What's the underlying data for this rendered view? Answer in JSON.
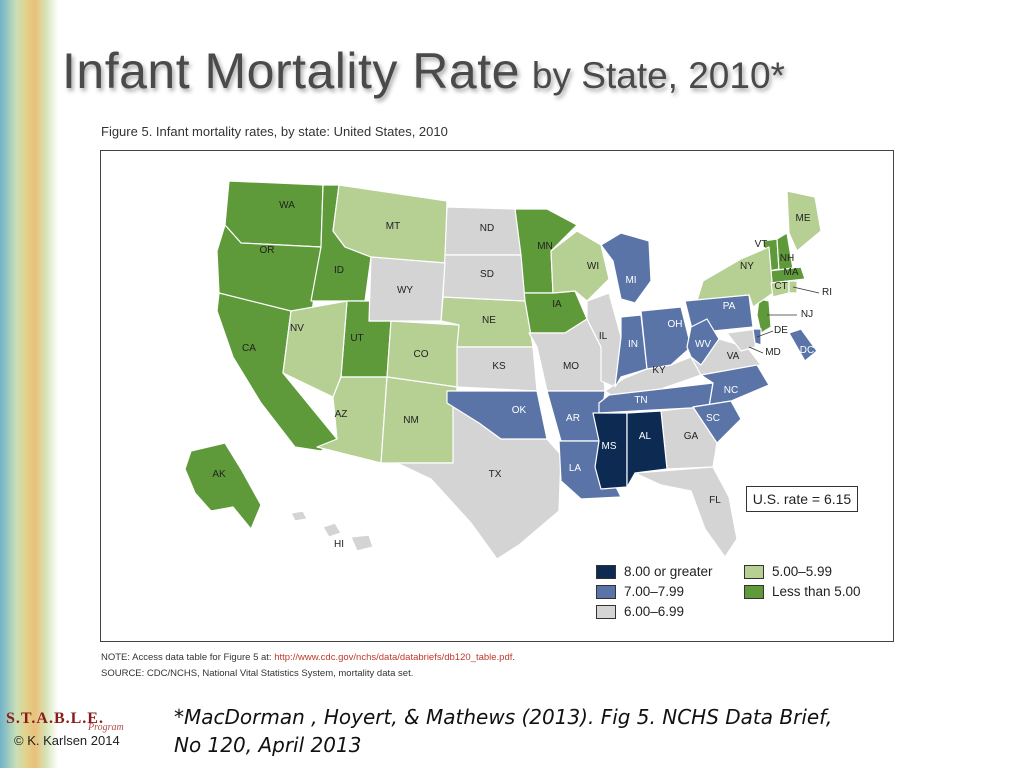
{
  "slide": {
    "title_main": "Infant Mortality Rate",
    "title_sub": "by State, 2010*"
  },
  "figure": {
    "caption": "Figure 5. Infant mortality rates, by state: United States, 2010",
    "us_rate": "U.S. rate = 6.15"
  },
  "legend": [
    {
      "label": "8.00 or greater",
      "color": "#0d2a52"
    },
    {
      "label": "7.00–7.99",
      "color": "#5b74a8"
    },
    {
      "label": "6.00–6.99",
      "color": "#d4d4d4"
    },
    {
      "label": "5.00–5.99",
      "color": "#b6cf93"
    },
    {
      "label": "Less than 5.00",
      "color": "#5e9a3a"
    }
  ],
  "map_data": {
    "type": "choropleth",
    "categories": [
      "8.00 or greater",
      "7.00–7.99",
      "6.00–6.99",
      "5.00–5.99",
      "Less than 5.00"
    ],
    "states": [
      {
        "code": "WA",
        "category": 4
      },
      {
        "code": "OR",
        "category": 4
      },
      {
        "code": "CA",
        "category": 4
      },
      {
        "code": "ID",
        "category": 4
      },
      {
        "code": "UT",
        "category": 4
      },
      {
        "code": "MN",
        "category": 4
      },
      {
        "code": "IA",
        "category": 4
      },
      {
        "code": "VT",
        "category": 4
      },
      {
        "code": "NH",
        "category": 4
      },
      {
        "code": "MA",
        "category": 4
      },
      {
        "code": "NJ",
        "category": 4
      },
      {
        "code": "AK",
        "category": 4
      },
      {
        "code": "MT",
        "category": 3
      },
      {
        "code": "NV",
        "category": 3
      },
      {
        "code": "CO",
        "category": 3
      },
      {
        "code": "AZ",
        "category": 3
      },
      {
        "code": "NM",
        "category": 3
      },
      {
        "code": "NE",
        "category": 3
      },
      {
        "code": "WI",
        "category": 3
      },
      {
        "code": "NY",
        "category": 3
      },
      {
        "code": "ME",
        "category": 3
      },
      {
        "code": "CT",
        "category": 3
      },
      {
        "code": "RI",
        "category": 3
      },
      {
        "code": "ND",
        "category": 2
      },
      {
        "code": "SD",
        "category": 2
      },
      {
        "code": "WY",
        "category": 2
      },
      {
        "code": "KS",
        "category": 2
      },
      {
        "code": "TX",
        "category": 2
      },
      {
        "code": "MO",
        "category": 2
      },
      {
        "code": "IL",
        "category": 2
      },
      {
        "code": "KY",
        "category": 2
      },
      {
        "code": "VA",
        "category": 2
      },
      {
        "code": "GA",
        "category": 2
      },
      {
        "code": "FL",
        "category": 2
      },
      {
        "code": "HI",
        "category": 2
      },
      {
        "code": "MD",
        "category": 2
      },
      {
        "code": "OK",
        "category": 1
      },
      {
        "code": "AR",
        "category": 1
      },
      {
        "code": "LA",
        "category": 1
      },
      {
        "code": "MI",
        "category": 1
      },
      {
        "code": "IN",
        "category": 1
      },
      {
        "code": "OH",
        "category": 1
      },
      {
        "code": "TN",
        "category": 1
      },
      {
        "code": "PA",
        "category": 1
      },
      {
        "code": "WV",
        "category": 1
      },
      {
        "code": "NC",
        "category": 1
      },
      {
        "code": "SC",
        "category": 1
      },
      {
        "code": "DE",
        "category": 1
      },
      {
        "code": "DC",
        "category": 1
      },
      {
        "code": "MS",
        "category": 0
      },
      {
        "code": "AL",
        "category": 0
      }
    ]
  },
  "notes": {
    "note_prefix": "NOTE: Access data table for Figure 5 at: ",
    "note_link": "http://www.cdc.gov/nchs/data/databriefs/db120_table.pdf",
    "note_suffix": ".",
    "source": "SOURCE: CDC/NCHS, National Vital Statistics System, mortality data set."
  },
  "citation": {
    "line1": "*MacDorman , Hoyert, & Mathews (2013). Fig 5. NCHS Data Brief,",
    "line2": "No 120, April 2013"
  },
  "logo": {
    "name": "S.T.A.B.L.E.",
    "tag": "Program",
    "copyright": "© K. Karlsen 2014"
  }
}
